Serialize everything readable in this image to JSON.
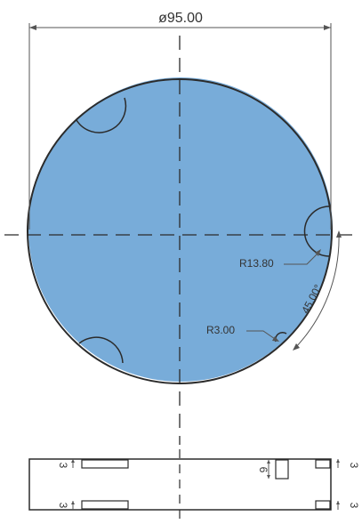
{
  "colors": {
    "fill": "#78acd9",
    "stroke": "#2b2b2b",
    "dim": "#555555",
    "text": "#333333"
  },
  "dimensions": {
    "diameter": "ø95.00",
    "radius_large": "R13.80",
    "radius_small": "R3.00",
    "angle": "45.00°",
    "left_top_depth": "3",
    "left_bottom_depth": "3",
    "right_top_depth": "3",
    "right_bottom_depth": "3",
    "slot_depth": "6"
  }
}
